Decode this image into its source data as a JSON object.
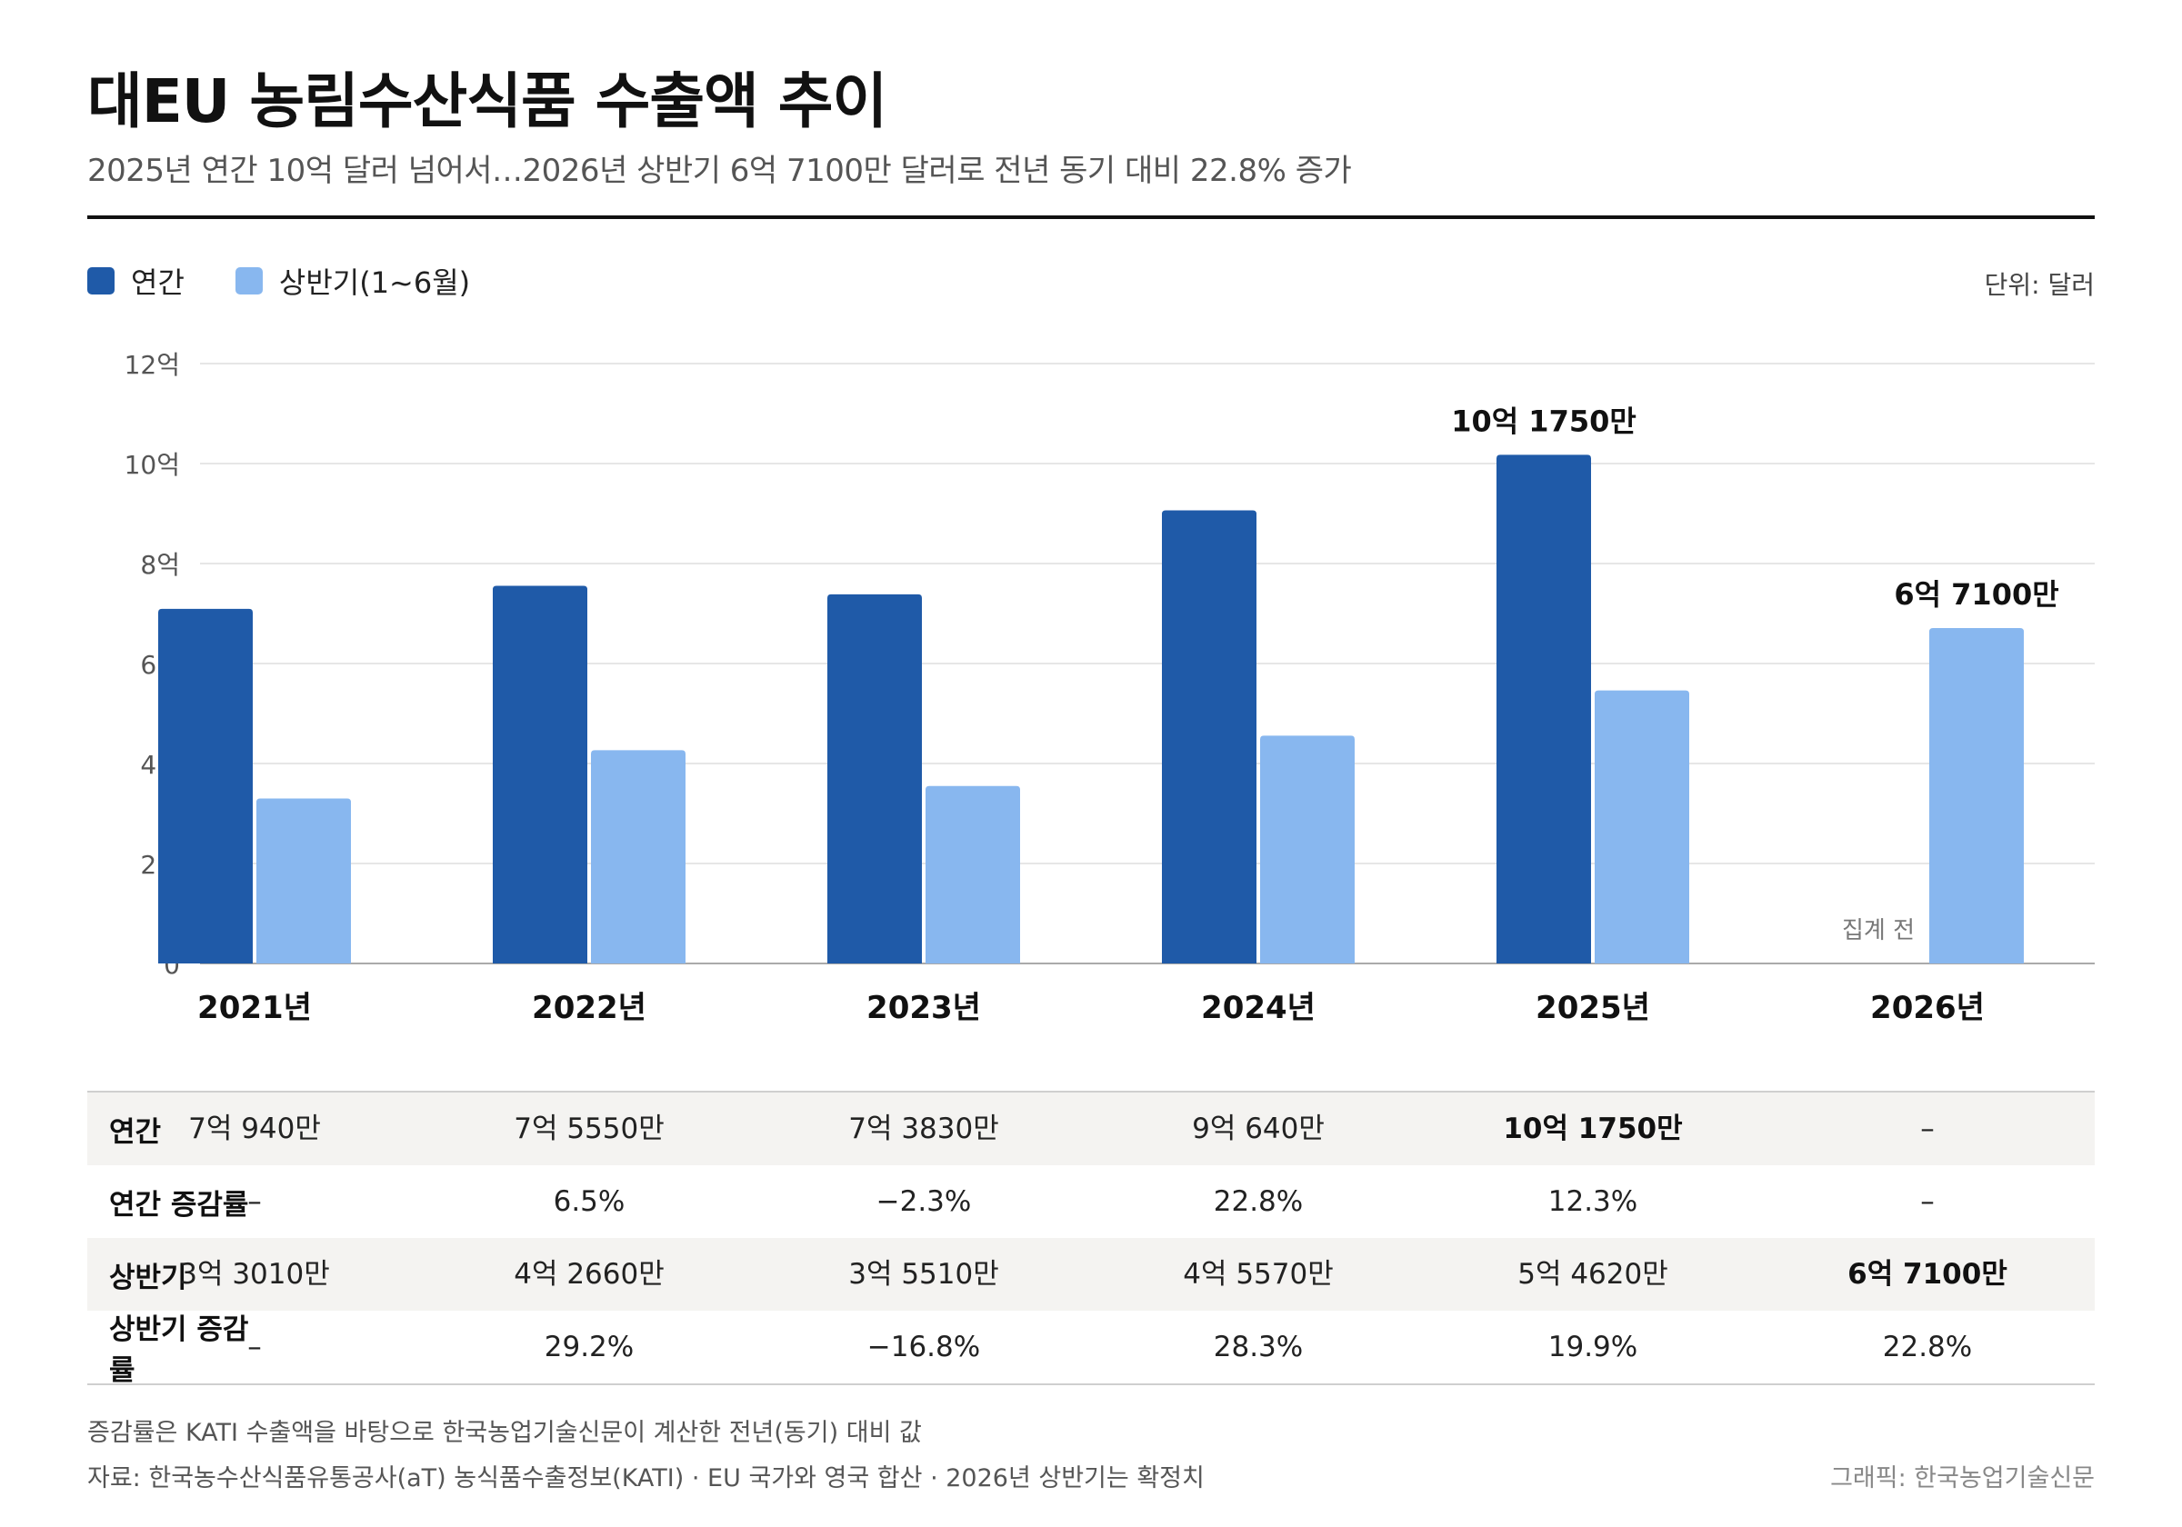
{
  "header": {
    "title": "대EU 농림수산식품 수출액 추이",
    "subtitle": "2025년 연간 10억 달러 넘어서…2026년 상반기 6억 7100만 달러로 전년 동기 대비 22.8% 증가"
  },
  "legend": {
    "annual": "연간",
    "half": "상반기(1~6월)"
  },
  "unit": "단위: 달러",
  "colors": {
    "annual": "#1f5aa8",
    "half": "#88b7ef",
    "grid": "#dddddd",
    "axis": "#aaaaaa"
  },
  "chart_data": {
    "type": "bar",
    "categories": [
      "2021년",
      "2022년",
      "2023년",
      "2024년",
      "2025년",
      "2026년"
    ],
    "series": [
      {
        "name": "연간",
        "values": [
          7.094,
          7.555,
          7.383,
          9.064,
          10.175,
          null
        ]
      },
      {
        "name": "상반기(1~6월)",
        "values": [
          3.301,
          4.266,
          3.551,
          4.557,
          5.462,
          6.71
        ]
      }
    ],
    "ylim": [
      0,
      12
    ],
    "yticks": [
      0,
      2,
      4,
      6,
      8,
      10,
      12
    ],
    "ytick_labels": [
      "0",
      "2억",
      "4억",
      "6억",
      "8억",
      "10억",
      "12억"
    ],
    "grid": true,
    "legend": "top-left",
    "annotations": [
      {
        "series": 0,
        "index": 4,
        "text": "10억 1750만"
      },
      {
        "series": 1,
        "index": 5,
        "text": "6억 7100만"
      },
      {
        "series": 0,
        "index": 5,
        "text": "집계 전"
      }
    ]
  },
  "table": {
    "rows": [
      {
        "label": "연간",
        "cells": [
          "7억 940만",
          "7억 5550만",
          "7억 3830만",
          "9억 640만",
          "10억 1750만",
          "–"
        ],
        "bold_index": 4
      },
      {
        "label": "연간 증감률",
        "cells": [
          "–",
          "6.5%",
          "−2.3%",
          "22.8%",
          "12.3%",
          "–"
        ],
        "bold_index": -1
      },
      {
        "label": "상반기",
        "cells": [
          "3억 3010만",
          "4억 2660만",
          "3억 5510만",
          "4억 5570만",
          "5억 4620만",
          "6억 7100만"
        ],
        "bold_index": 5
      },
      {
        "label": "상반기 증감률",
        "cells": [
          "–",
          "29.2%",
          "−16.8%",
          "28.3%",
          "19.9%",
          "22.8%"
        ],
        "bold_index": -1
      }
    ]
  },
  "footer": {
    "note": "증감률은 KATI 수출액을 바탕으로 한국농업기술신문이 계산한 전년(동기) 대비 값",
    "source": "자료: 한국농수산식품유통공사(aT) 농식품수출정보(KATI) · EU 국가와 영국 합산 · 2026년 상반기는 확정치",
    "credit": "그래픽: 한국농업기술신문"
  }
}
